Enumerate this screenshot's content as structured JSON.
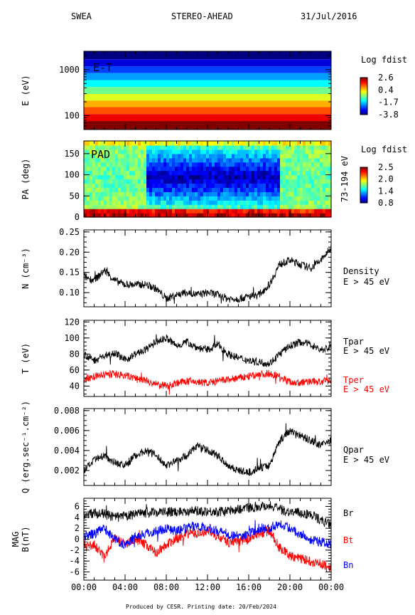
{
  "header": {
    "left": "SWEA",
    "center": "STEREO-AHEAD",
    "right": "31/Jul/2016"
  },
  "footer": "Produced by CESR.   Printing date: 20/Feb/2024",
  "time_ticks": [
    "00:00",
    "04:00",
    "08:00",
    "12:00",
    "16:00",
    "20:00",
    "00:00"
  ],
  "colors": {
    "black": "#000000",
    "red": "#ff0000",
    "blue": "#0000ff"
  },
  "chart_data": [
    {
      "type": "heatmap",
      "panel_label": "E-T",
      "ylabel": "E (eV)",
      "yscale": "log",
      "yticks": [
        "1000",
        "100"
      ],
      "colorbar_title": "Log fdist",
      "colorbar_ticks": [
        "2.6",
        "0.4",
        "-1.7",
        "-3.8"
      ],
      "x_hours": [
        0,
        24
      ],
      "energy_levels_eV": [
        2000,
        1400,
        1000,
        700,
        500,
        350,
        250,
        180,
        130,
        90,
        65
      ],
      "log_fdist_by_level": [
        -3.8,
        -3.2,
        -2.6,
        -2.0,
        -1.4,
        -0.7,
        0.0,
        0.7,
        1.3,
        1.9,
        2.6
      ]
    },
    {
      "type": "heatmap",
      "panel_label": "PAD",
      "ylabel": "PA (deg)",
      "yticks": [
        "150",
        "100",
        "50",
        "0"
      ],
      "right_label": "73-194 eV",
      "colorbar_title": "Log fdist",
      "colorbar_ticks": [
        "2.5",
        "2.0",
        "1.4",
        "0.8"
      ],
      "ylim": [
        0,
        180
      ],
      "x_hours": [
        0,
        24
      ],
      "note_levels": {
        "pa_90_log_fdist_06_to_19h": 0.9,
        "pa_90_log_fdist_other": 1.6,
        "pa_0_log_fdist": 2.4
      }
    },
    {
      "type": "line",
      "ylabel": "N (cm⁻³)",
      "yticks": [
        "0.25",
        "0.20",
        "0.15",
        "0.10"
      ],
      "ylim": [
        0.065,
        0.255
      ],
      "series": [
        {
          "name": "Density",
          "sublabel": "E > 45 eV",
          "color": "#000000",
          "x": [
            0,
            1,
            2,
            3,
            4,
            5,
            6,
            7,
            8,
            9,
            10,
            11,
            12,
            13,
            14,
            15,
            16,
            17,
            18,
            19,
            20,
            21,
            22,
            23,
            24
          ],
          "values": [
            0.14,
            0.13,
            0.155,
            0.13,
            0.12,
            0.12,
            0.12,
            0.11,
            0.085,
            0.095,
            0.1,
            0.095,
            0.1,
            0.095,
            0.085,
            0.085,
            0.09,
            0.095,
            0.12,
            0.17,
            0.18,
            0.17,
            0.16,
            0.18,
            0.21
          ]
        }
      ]
    },
    {
      "type": "line",
      "ylabel": "T (eV)",
      "yticks": [
        "120",
        "100",
        "80",
        "60",
        "40"
      ],
      "ylim": [
        27,
        122
      ],
      "series": [
        {
          "name": "Tpar",
          "sublabel": "E > 45 eV",
          "color": "#000000",
          "x": [
            0,
            1,
            2,
            3,
            4,
            5,
            6,
            7,
            8,
            9,
            10,
            11,
            12,
            13,
            14,
            15,
            16,
            17,
            18,
            19,
            20,
            21,
            22,
            23,
            24
          ],
          "values": [
            80,
            72,
            78,
            82,
            72,
            80,
            85,
            95,
            100,
            90,
            95,
            88,
            85,
            92,
            80,
            75,
            72,
            70,
            68,
            80,
            90,
            95,
            92,
            85,
            88
          ]
        },
        {
          "name": "Tper",
          "sublabel": "E > 45 eV",
          "color": "#ff0000",
          "x": [
            0,
            1,
            2,
            3,
            4,
            5,
            6,
            7,
            8,
            9,
            10,
            11,
            12,
            13,
            14,
            15,
            16,
            17,
            18,
            19,
            20,
            21,
            22,
            23,
            24
          ],
          "values": [
            48,
            52,
            54,
            55,
            53,
            50,
            47,
            42,
            40,
            44,
            46,
            45,
            44,
            46,
            48,
            50,
            52,
            54,
            56,
            52,
            45,
            44,
            46,
            45,
            47
          ]
        }
      ]
    },
    {
      "type": "line",
      "ylabel": "Q (erg.sec⁻¹.cm⁻²)",
      "yticks": [
        "0.008",
        "0.006",
        "0.004",
        "0.002"
      ],
      "ylim": [
        0.0005,
        0.0082
      ],
      "series": [
        {
          "name": "Qpar",
          "sublabel": "E > 45 eV",
          "color": "#000000",
          "x": [
            0,
            1,
            2,
            3,
            4,
            5,
            6,
            7,
            8,
            9,
            10,
            11,
            12,
            13,
            14,
            15,
            16,
            17,
            18,
            19,
            20,
            21,
            22,
            23,
            24
          ],
          "values": [
            0.002,
            0.003,
            0.0035,
            0.0028,
            0.0025,
            0.0035,
            0.004,
            0.0035,
            0.0025,
            0.003,
            0.0035,
            0.0045,
            0.004,
            0.0035,
            0.0025,
            0.002,
            0.0018,
            0.0022,
            0.0025,
            0.005,
            0.006,
            0.0055,
            0.005,
            0.0045,
            0.005
          ]
        }
      ]
    },
    {
      "type": "line",
      "ylabel": "MAG B(nT)",
      "yticks": [
        "6",
        "4",
        "2",
        "0",
        "-2",
        "-4",
        "-6"
      ],
      "ylim": [
        -7.5,
        7.5
      ],
      "series": [
        {
          "name": "Br",
          "color": "#000000",
          "x": [
            0,
            1,
            2,
            3,
            4,
            5,
            6,
            7,
            8,
            9,
            10,
            11,
            12,
            13,
            14,
            15,
            16,
            17,
            18,
            19,
            20,
            21,
            22,
            23,
            24
          ],
          "values": [
            4.5,
            4.8,
            4.6,
            4.0,
            4.2,
            4.5,
            4.8,
            5.0,
            5.0,
            5.0,
            5.2,
            5.2,
            5.1,
            5.0,
            5.2,
            5.5,
            5.8,
            6.0,
            6.2,
            5.5,
            5.0,
            4.8,
            4.5,
            3.5,
            2.5
          ]
        },
        {
          "name": "Bt",
          "color": "#ff0000",
          "x": [
            0,
            1,
            2,
            3,
            4,
            5,
            6,
            7,
            8,
            9,
            10,
            11,
            12,
            13,
            14,
            15,
            16,
            17,
            18,
            19,
            20,
            21,
            22,
            23,
            24
          ],
          "values": [
            -1.5,
            -1.0,
            -3.5,
            0.5,
            -1.0,
            0.0,
            -1.0,
            -2.5,
            -1.0,
            0.0,
            1.0,
            1.0,
            1.5,
            0.5,
            -0.5,
            -0.5,
            0.0,
            1.0,
            1.5,
            -1.5,
            -3.0,
            -3.5,
            -4.0,
            -4.5,
            -5.5
          ]
        },
        {
          "name": "Bn",
          "color": "#0000ff",
          "x": [
            0,
            1,
            2,
            3,
            4,
            5,
            6,
            7,
            8,
            9,
            10,
            11,
            12,
            13,
            14,
            15,
            16,
            17,
            18,
            19,
            20,
            21,
            22,
            23,
            24
          ],
          "values": [
            0.5,
            1.0,
            2.0,
            0.0,
            -1.0,
            0.5,
            1.0,
            1.5,
            2.0,
            1.5,
            2.0,
            2.5,
            2.0,
            1.5,
            1.0,
            0.5,
            1.0,
            2.0,
            2.0,
            3.0,
            2.0,
            1.0,
            0.0,
            -0.5,
            -1.0
          ]
        }
      ]
    }
  ]
}
